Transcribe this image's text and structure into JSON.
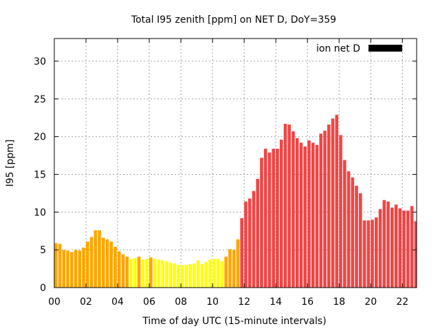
{
  "chart_data": {
    "type": "bar",
    "title": "Total I95 zenith [ppm] on NET D, DoY=359",
    "xlabel": "Time of day UTC (15-minute intervals)",
    "ylabel": "I95 [ppm]",
    "ylim": [
      0,
      33
    ],
    "xlim_hours": [
      0,
      22.9
    ],
    "bar_interval_hours": 0.25,
    "yticks": [
      0,
      5,
      10,
      15,
      20,
      25,
      30
    ],
    "xtick_hours": [
      0,
      2,
      4,
      6,
      8,
      10,
      12,
      14,
      16,
      18,
      20,
      22
    ],
    "xtick_labels": [
      "00",
      "02",
      "04",
      "06",
      "08",
      "10",
      "12",
      "14",
      "16",
      "18",
      "20",
      "22"
    ],
    "grid": true,
    "legend": {
      "label": "ion net D",
      "color": "#000000",
      "placement": "top-right"
    },
    "color_levels": [
      {
        "below": 3.95,
        "color": "#ffff00"
      },
      {
        "below": 8.0,
        "color": "#ffa500"
      },
      {
        "below": 1000,
        "color": "#f04545"
      }
    ],
    "values": [
      5.9,
      5.8,
      5.0,
      4.9,
      4.7,
      5.0,
      4.9,
      5.3,
      6.1,
      6.7,
      7.6,
      7.6,
      6.6,
      6.4,
      6.1,
      5.4,
      4.8,
      4.4,
      4.1,
      3.8,
      3.9,
      4.1,
      3.7,
      3.8,
      4.0,
      3.8,
      3.7,
      3.6,
      3.5,
      3.3,
      3.2,
      3.0,
      3.0,
      3.0,
      3.1,
      3.2,
      3.6,
      3.1,
      3.4,
      3.7,
      3.8,
      3.8,
      3.5,
      4.1,
      5.1,
      5.0,
      6.4,
      9.2,
      11.4,
      11.8,
      12.8,
      14.4,
      17.2,
      18.4,
      17.9,
      18.4,
      18.4,
      19.6,
      21.7,
      21.6,
      20.7,
      19.8,
      19.2,
      18.7,
      19.5,
      19.2,
      18.9,
      20.4,
      20.8,
      21.6,
      22.4,
      22.9,
      20.2,
      16.9,
      15.4,
      14.6,
      13.5,
      12.5,
      8.9,
      8.9,
      9.0,
      9.3,
      10.4,
      11.6,
      11.4,
      10.6,
      11.0,
      10.5,
      10.2,
      10.2,
      10.8,
      8.8
    ]
  }
}
